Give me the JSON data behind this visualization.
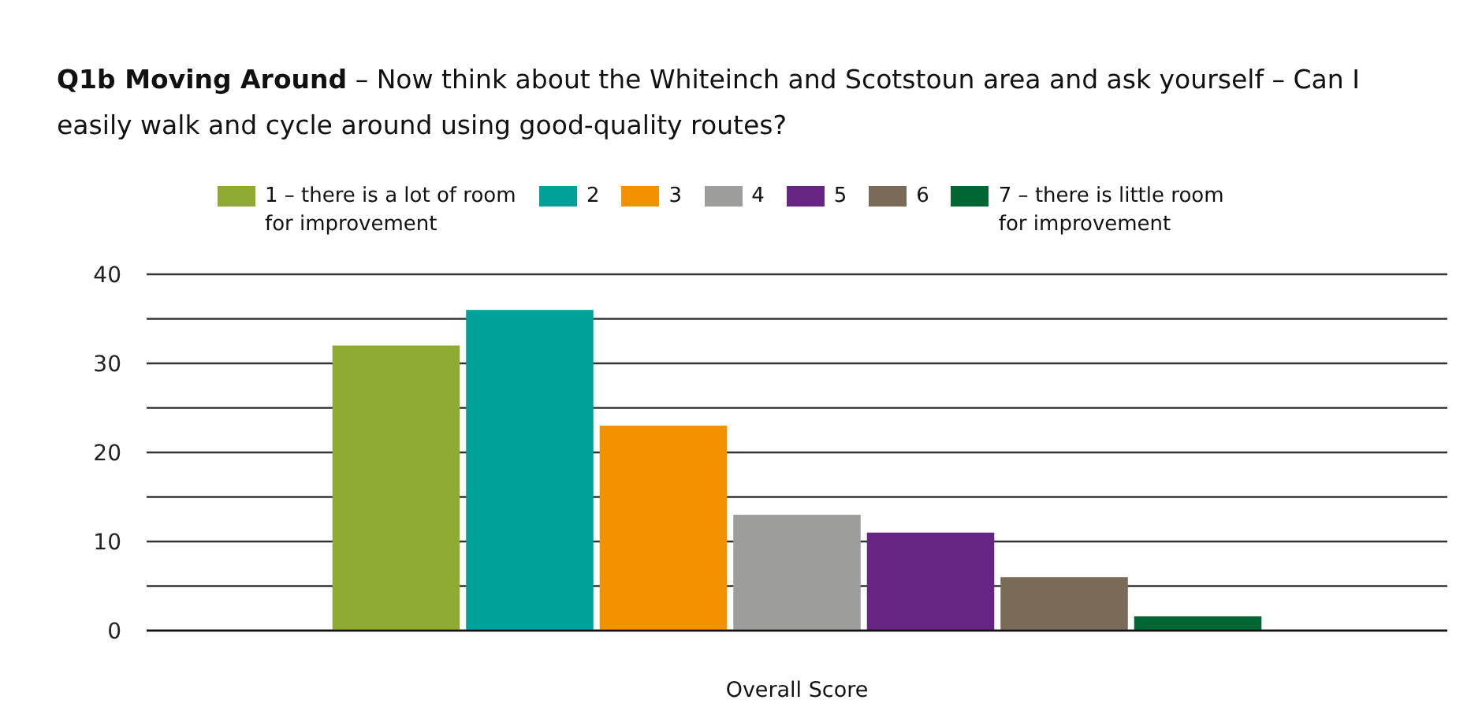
{
  "chart_data": {
    "type": "bar",
    "title": "Q1b Moving Around",
    "subtitle": "– Now think about the Whiteinch and Scotstoun area and ask yourself – Can I easily walk and cycle around using good-quality routes?",
    "xlabel": "Overall Score",
    "categories": [
      null
    ],
    "series": [
      {
        "name": "1 – there is a lot of room for improvement",
        "color": "#8faa32",
        "values": [
          32
        ]
      },
      {
        "name": "2",
        "color": "#00a19a",
        "values": [
          36
        ]
      },
      {
        "name": "3",
        "color": "#f29200",
        "values": [
          23
        ]
      },
      {
        "name": "4",
        "color": "#9d9d9c",
        "values": [
          13
        ]
      },
      {
        "name": "5",
        "color": "#662483",
        "values": [
          11
        ]
      },
      {
        "name": "6",
        "color": "#7a6a58",
        "values": [
          6
        ]
      },
      {
        "name": "7 – there is little room for improvement",
        "color": "#006633",
        "values": [
          1.6
        ]
      }
    ],
    "ylim": [
      0,
      40
    ],
    "yticks": [
      0,
      {
        "value": 5,
        "label": null
      },
      10,
      {
        "value": 15,
        "label": null
      },
      20,
      {
        "value": 25,
        "label": null
      },
      30,
      {
        "value": 35,
        "label": null
      },
      40
    ],
    "grid": "y",
    "legend": "top"
  }
}
